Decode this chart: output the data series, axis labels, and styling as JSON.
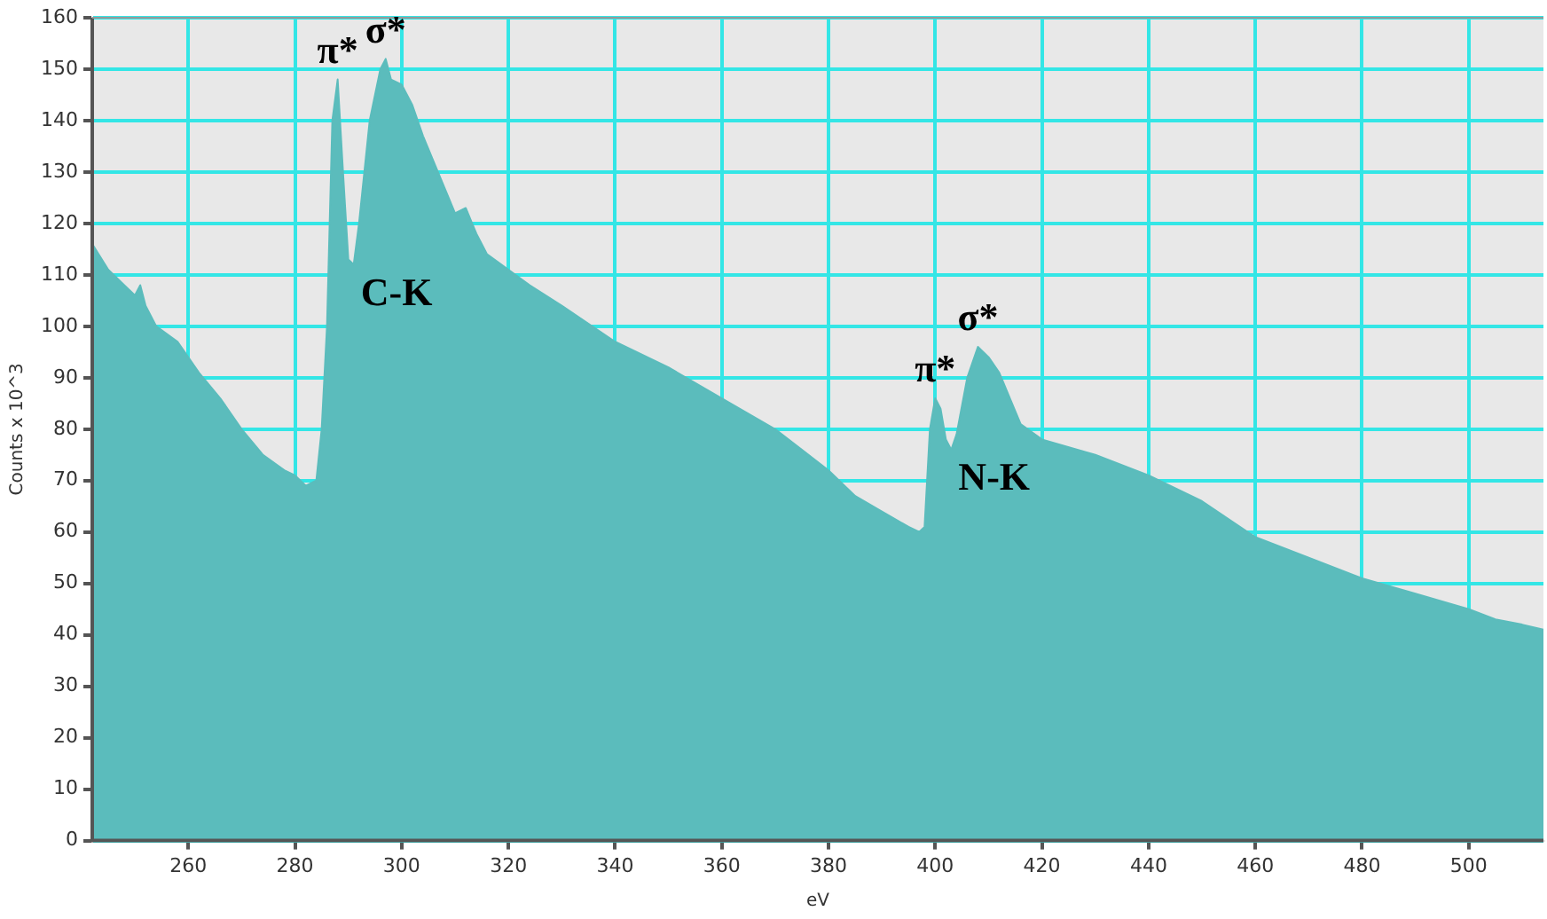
{
  "chart_data": {
    "type": "area",
    "xlabel": "eV",
    "ylabel": "Counts x 10^3",
    "xlim": [
      242,
      514
    ],
    "xticks": [
      260,
      280,
      300,
      320,
      340,
      360,
      380,
      400,
      420,
      440,
      460,
      480,
      500
    ],
    "ylim": [
      0,
      160
    ],
    "yticks": [
      0,
      10,
      20,
      30,
      40,
      50,
      60,
      70,
      80,
      90,
      100,
      110,
      120,
      130,
      140,
      150,
      160
    ],
    "grid": true,
    "series": [
      {
        "color": "#5bbcbc",
        "x": [
          242,
          245,
          248,
          250,
          251,
          252,
          254,
          258,
          262,
          266,
          270,
          274,
          278,
          280,
          282,
          284,
          285,
          286,
          287,
          288,
          289,
          290,
          291,
          292,
          294,
          296,
          297,
          298,
          300,
          302,
          304,
          306,
          308,
          310,
          312,
          314,
          316,
          320,
          324,
          330,
          340,
          350,
          360,
          370,
          380,
          385,
          390,
          395,
          397,
          398,
          399,
          400,
          401,
          402,
          403,
          404,
          406,
          408,
          410,
          412,
          414,
          416,
          420,
          430,
          440,
          450,
          460,
          470,
          480,
          490,
          500,
          505,
          510,
          514
        ],
        "values": [
          116,
          111,
          108,
          106,
          108,
          104,
          100,
          97,
          91,
          86,
          80,
          75,
          72,
          71,
          69,
          70,
          80,
          100,
          140,
          148,
          130,
          113,
          112,
          120,
          140,
          150,
          152,
          148,
          147,
          143,
          137,
          132,
          127,
          122,
          123,
          118,
          114,
          111,
          108,
          104,
          97,
          92,
          86,
          80,
          72,
          67,
          64,
          61,
          60,
          61,
          80,
          86,
          84,
          78,
          76,
          79,
          90,
          96,
          94,
          91,
          86,
          81,
          78,
          75,
          71,
          66,
          59,
          55,
          51,
          48,
          45,
          43,
          42,
          41
        ]
      }
    ],
    "annotations": [
      {
        "text": "π*",
        "x": 288,
        "y": 148
      },
      {
        "text": "σ*",
        "x": 297,
        "y": 152
      },
      {
        "text": "C-K",
        "x": 291,
        "y": 112
      },
      {
        "text": "π*",
        "x": 400,
        "y": 86
      },
      {
        "text": "σ*",
        "x": 408,
        "y": 96
      },
      {
        "text": "N-K",
        "x": 403,
        "y": 76
      }
    ]
  }
}
